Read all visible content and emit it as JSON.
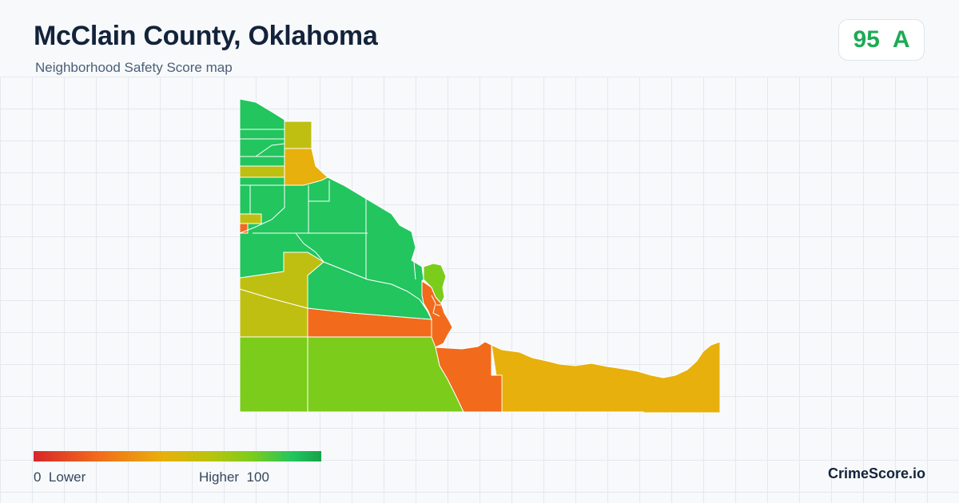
{
  "header": {
    "title": "McClain County, Oklahoma",
    "subtitle": "Neighborhood Safety Score map"
  },
  "score": {
    "value": "95",
    "grade": "A",
    "color": "#1eaa55"
  },
  "legend": {
    "min_label": "0",
    "low_label": "Lower",
    "high_label": "Higher",
    "max_label": "100",
    "colors": [
      "#d7262b",
      "#f26a1b",
      "#e8b00c",
      "#b7c40d",
      "#7ccc1c",
      "#22c55e",
      "#16a34a"
    ]
  },
  "brand": {
    "name": "CrimeScore.io"
  },
  "map": {
    "region_colors": {
      "high": "#22c55e",
      "upper_mid": "#7ccc1c",
      "mid": "#bfbf12",
      "lower_mid": "#e8b00c",
      "low": "#f26a1b"
    }
  }
}
